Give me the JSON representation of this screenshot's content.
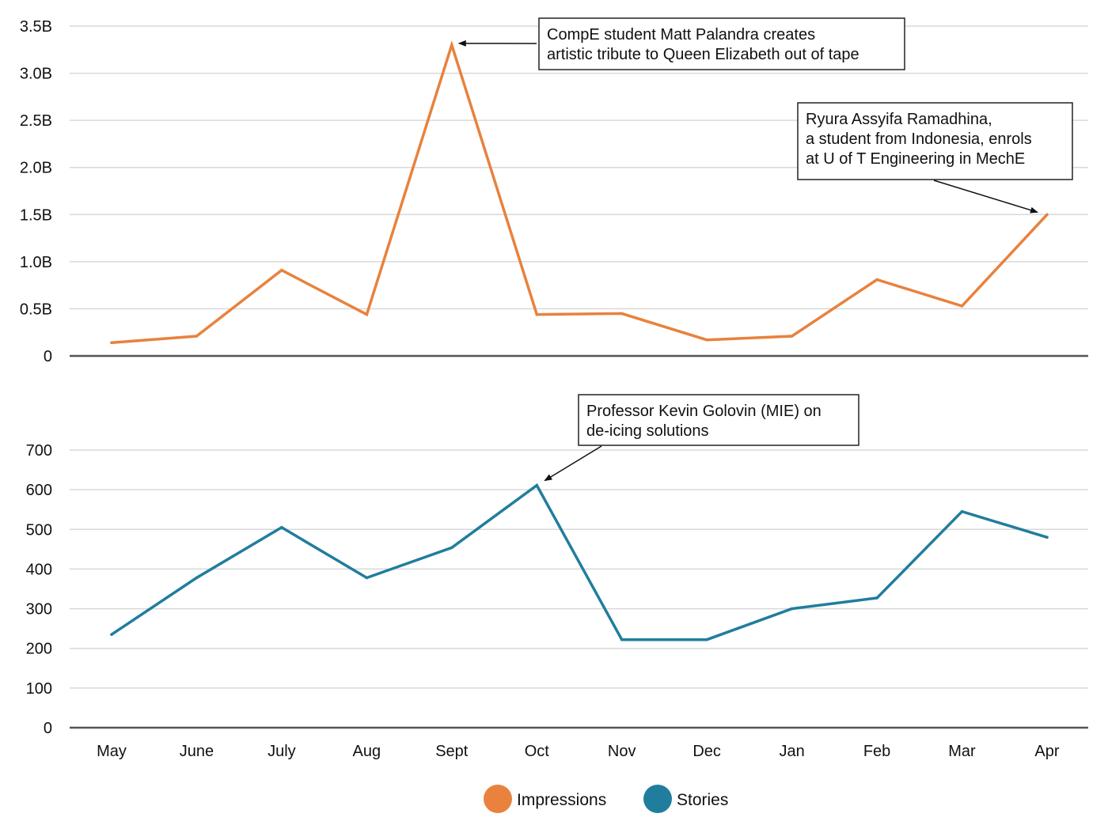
{
  "chart_data": [
    {
      "type": "line",
      "categories": [
        "May",
        "June",
        "July",
        "Aug",
        "Sept",
        "Oct",
        "Nov",
        "Dec",
        "Jan",
        "Feb",
        "Mar",
        "Apr"
      ],
      "series": [
        {
          "name": "Impressions",
          "color": "#E8823D",
          "values": [
            0.14,
            0.21,
            0.91,
            0.44,
            3.3,
            0.44,
            0.45,
            0.17,
            0.21,
            0.81,
            0.53,
            1.5
          ]
        }
      ],
      "yticks": [
        {
          "value": 0,
          "label": "0"
        },
        {
          "value": 0.5,
          "label": "0.5B"
        },
        {
          "value": 1.0,
          "label": "1.0B"
        },
        {
          "value": 1.5,
          "label": "1.5B"
        },
        {
          "value": 2.0,
          "label": "2.0B"
        },
        {
          "value": 2.5,
          "label": "2.5B"
        },
        {
          "value": 3.0,
          "label": "3.0B"
        },
        {
          "value": 3.5,
          "label": "3.5B"
        }
      ],
      "ylim": [
        0,
        3.5
      ],
      "grid": true,
      "annotations": [
        {
          "lines": [
            "CompE student Matt Palandra creates",
            "artistic tribute to Queen Elizabeth out of tape"
          ],
          "target_category": "Sept"
        },
        {
          "lines": [
            "Ryura Assyifa Ramadhina,",
            "a student from Indonesia, enrols",
            "at U of T Engineering in MechE"
          ],
          "target_category": "Apr"
        }
      ]
    },
    {
      "type": "line",
      "categories": [
        "May",
        "June",
        "July",
        "Aug",
        "Sept",
        "Oct",
        "Nov",
        "Dec",
        "Jan",
        "Feb",
        "Mar",
        "Apr"
      ],
      "series": [
        {
          "name": "Stories",
          "color": "#217D9E",
          "values": [
            235,
            378,
            505,
            378,
            454,
            611,
            222,
            222,
            300,
            327,
            545,
            480
          ]
        }
      ],
      "yticks": [
        {
          "value": 0,
          "label": "0"
        },
        {
          "value": 100,
          "label": "100"
        },
        {
          "value": 200,
          "label": "200"
        },
        {
          "value": 300,
          "label": "300"
        },
        {
          "value": 400,
          "label": "400"
        },
        {
          "value": 500,
          "label": "500"
        },
        {
          "value": 600,
          "label": "600"
        },
        {
          "value": 700,
          "label": "700"
        }
      ],
      "ylim": [
        0,
        700
      ],
      "grid": true,
      "annotations": [
        {
          "lines": [
            "Professor Kevin Golovin (MIE) on",
            "de-icing solutions"
          ],
          "target_category": "Oct"
        }
      ]
    }
  ],
  "legend": {
    "placement": "bottom-center",
    "items": [
      {
        "label": "Impressions",
        "color": "#E8823D"
      },
      {
        "label": "Stories",
        "color": "#217D9E"
      }
    ]
  }
}
